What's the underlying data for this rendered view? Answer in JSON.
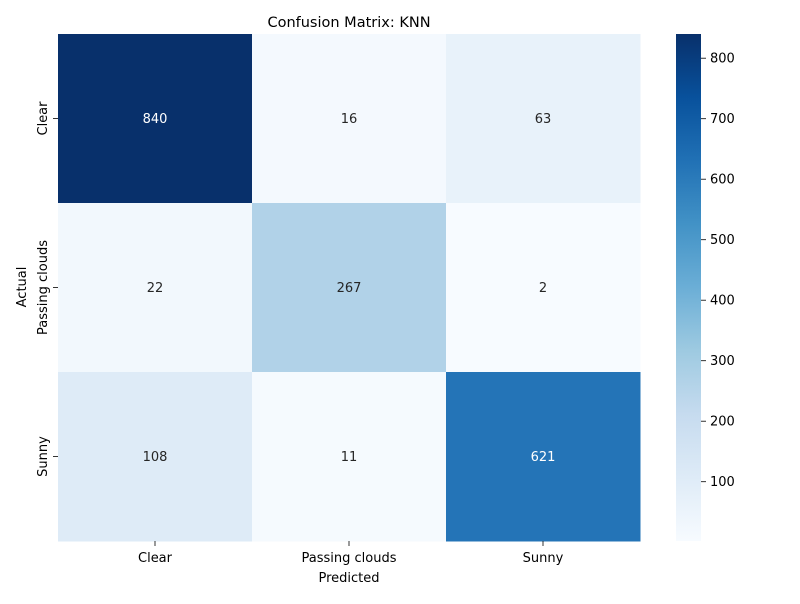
{
  "chart_data": {
    "type": "heatmap",
    "title": "Confusion Matrix: KNN",
    "xlabel": "Predicted",
    "ylabel": "Actual",
    "x_categories": [
      "Clear",
      "Passing clouds",
      "Sunny"
    ],
    "y_categories": [
      "Clear",
      "Passing clouds",
      "Sunny"
    ],
    "values": [
      [
        840,
        16,
        63
      ],
      [
        22,
        267,
        2
      ],
      [
        108,
        11,
        621
      ]
    ],
    "colormap": "Blues",
    "color_range": [
      2,
      840
    ],
    "colorbar_ticks": [
      100,
      200,
      300,
      400,
      500,
      600,
      700,
      800
    ],
    "grid": false
  }
}
